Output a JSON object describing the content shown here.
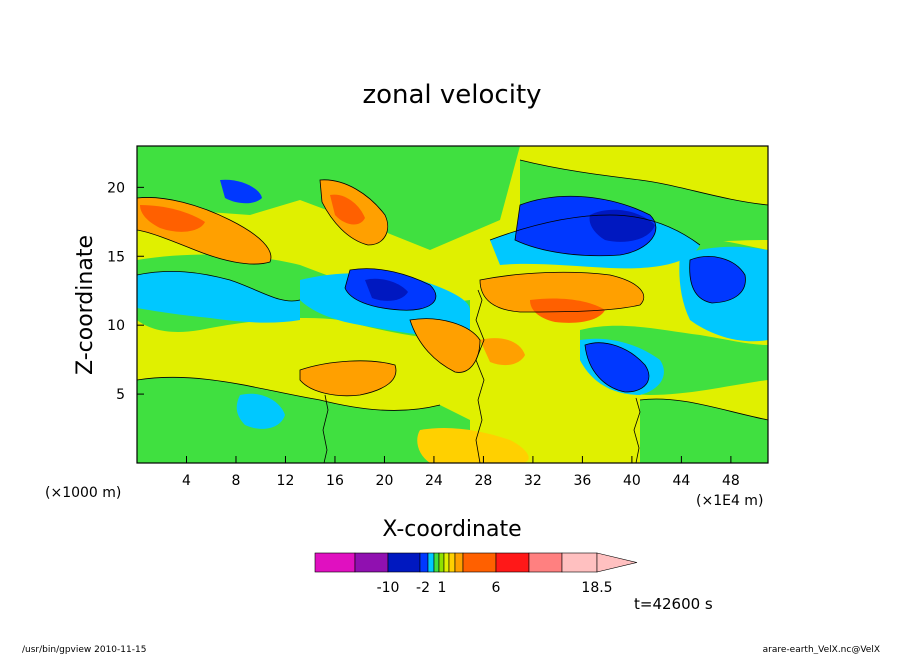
{
  "chart_data": {
    "type": "heatmap",
    "title": "zonal velocity",
    "xlabel": "X-coordinate",
    "ylabel": "Z-coordinate",
    "x_unit_label": "(×1000 m)",
    "x_scale_label": "(×1E4 m)",
    "xlim": [
      0,
      51
    ],
    "ylim": [
      0,
      23
    ],
    "x_ticks": [
      4,
      8,
      12,
      16,
      20,
      24,
      28,
      32,
      36,
      40,
      44,
      48
    ],
    "y_ticks": [
      5,
      10,
      15,
      20
    ],
    "colorbar": {
      "colors": [
        "#e010c0",
        "#9010b0",
        "#0018c0",
        "#0038ff",
        "#00c8ff",
        "#40e040",
        "#90e000",
        "#e0f000",
        "#ffd000",
        "#ffa000",
        "#ff6000",
        "#ff1818",
        "#ff8080",
        "#ffc0c0"
      ],
      "tick_labels": [
        "-10",
        "-2",
        "1",
        "6",
        "18.5"
      ]
    },
    "time_label": "t=42600 s"
  },
  "footer": {
    "left": "/usr/bin/gpview   2010-11-15",
    "right": "arare-earth_VelX.nc@VelX"
  }
}
